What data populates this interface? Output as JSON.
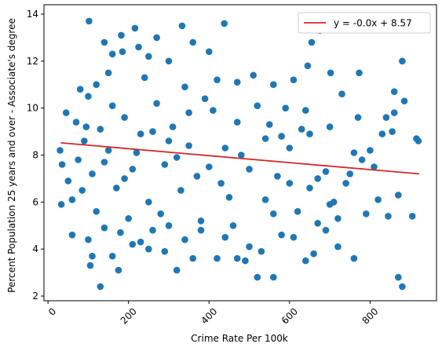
{
  "chart_data": {
    "type": "scatter",
    "title": "",
    "xlabel": "Crime Rate Per 100k",
    "ylabel": "Percent Population 25 years and over - Associate's degree",
    "xlim": [
      -10,
      965
    ],
    "ylim": [
      1.8,
      14.4
    ],
    "xticks": [
      0,
      200,
      400,
      600,
      800
    ],
    "yticks": [
      2,
      4,
      6,
      8,
      10,
      12,
      14
    ],
    "xtick_rotation": 45,
    "grid": false,
    "legend": {
      "placement": "top-right",
      "entries": [
        "y = -0.0x + 8.57"
      ]
    },
    "series": [
      {
        "kind": "points",
        "color": "#1f77b4",
        "points_sample": [
          [
            102,
            13.7
          ],
          [
            182,
            13.1
          ],
          [
            216,
            13.4
          ],
          [
            333,
            13.5
          ],
          [
            438,
            13.6
          ],
          [
            675,
            13.3
          ],
          [
            655,
            12.8
          ],
          [
            880,
            12.0
          ],
          [
            773,
            11.5
          ],
          [
            645,
            11.8
          ],
          [
            702,
            11.5
          ],
          [
            610,
            11.2
          ],
          [
            560,
            11.0
          ],
          [
            470,
            11.1
          ],
          [
            300,
            12.0
          ],
          [
            250,
            12.2
          ],
          [
            150,
            11.5
          ],
          [
            120,
            11.0
          ],
          [
            80,
            10.8
          ],
          [
            45,
            9.8
          ],
          [
            30,
            8.2
          ],
          [
            35,
            7.6
          ],
          [
            50,
            6.9
          ],
          [
            60,
            6.1
          ],
          [
            33,
            5.9
          ],
          [
            60,
            4.6
          ],
          [
            100,
            4.4
          ],
          [
            110,
            3.7
          ],
          [
            105,
            3.3
          ],
          [
            130,
            2.4
          ],
          [
            160,
            3.7
          ],
          [
            175,
            3.1
          ],
          [
            230,
            4.3
          ],
          [
            250,
            4.0
          ],
          [
            290,
            3.9
          ],
          [
            320,
            3.1
          ],
          [
            360,
            3.6
          ],
          [
            420,
            3.6
          ],
          [
            490,
            3.5
          ],
          [
            530,
            3.9
          ],
          [
            560,
            2.8
          ],
          [
            520,
            2.8
          ],
          [
            610,
            4.5
          ],
          [
            640,
            3.5
          ],
          [
            660,
            3.8
          ],
          [
            720,
            5.3
          ],
          [
            760,
            3.6
          ],
          [
            790,
            5.5
          ],
          [
            820,
            6.1
          ],
          [
            845,
            5.4
          ],
          [
            870,
            6.3
          ],
          [
            880,
            2.4
          ],
          [
            870,
            2.8
          ],
          [
            905,
            5.4
          ],
          [
            915,
            8.7
          ],
          [
            920,
            8.6
          ],
          [
            855,
            9.0
          ],
          [
            840,
            9.6
          ],
          [
            860,
            9.8
          ],
          [
            885,
            10.3
          ],
          [
            860,
            10.7
          ],
          [
            800,
            8.2
          ],
          [
            780,
            7.8
          ],
          [
            760,
            8.1
          ],
          [
            740,
            6.8
          ],
          [
            700,
            9.2
          ],
          [
            690,
            7.3
          ],
          [
            650,
            8.9
          ],
          [
            630,
            9.1
          ],
          [
            600,
            8.3
          ],
          [
            580,
            8.8
          ],
          [
            550,
            9.3
          ],
          [
            520,
            10.1
          ],
          [
            500,
            7.4
          ],
          [
            480,
            8.0
          ],
          [
            450,
            6.2
          ],
          [
            430,
            6.8
          ],
          [
            410,
            9.9
          ],
          [
            390,
            10.4
          ],
          [
            370,
            7.1
          ],
          [
            350,
            8.4
          ],
          [
            330,
            6.5
          ],
          [
            310,
            9.2
          ],
          [
            290,
            7.6
          ],
          [
            270,
            10.2
          ],
          [
            250,
            6.0
          ],
          [
            230,
            8.9
          ],
          [
            210,
            7.4
          ],
          [
            190,
            9.6
          ],
          [
            170,
            6.6
          ],
          [
            150,
            8.2
          ],
          [
            130,
            9.1
          ],
          [
            110,
            7.2
          ],
          [
            90,
            8.6
          ],
          [
            70,
            9.4
          ],
          [
            200,
            5.3
          ],
          [
            240,
            11.3
          ],
          [
            280,
            5.5
          ],
          [
            340,
            10.9
          ],
          [
            380,
            5.2
          ],
          [
            420,
            11.2
          ],
          [
            460,
            5.0
          ],
          [
            510,
            11.4
          ],
          [
            540,
            6.1
          ],
          [
            590,
            10.0
          ],
          [
            620,
            5.6
          ],
          [
            670,
            7.0
          ],
          [
            710,
            6.0
          ],
          [
            730,
            10.6
          ],
          [
            750,
            7.2
          ],
          [
            770,
            9.6
          ],
          [
            810,
            7.5
          ],
          [
            830,
            8.9
          ],
          [
            600,
            6.8
          ],
          [
            400,
            12.4
          ],
          [
            360,
            12.8
          ],
          [
            270,
            13.0
          ],
          [
            225,
            12.6
          ],
          [
            185,
            12.4
          ],
          [
            160,
            12.3
          ],
          [
            140,
            12.8
          ],
          [
            640,
            9.9
          ],
          [
            120,
            5.6
          ],
          [
            140,
            4.9
          ],
          [
            180,
            4.7
          ],
          [
            210,
            4.2
          ],
          [
            260,
            4.8
          ],
          [
            300,
            5.0
          ],
          [
            340,
            4.4
          ],
          [
            380,
            4.8
          ],
          [
            440,
            4.5
          ],
          [
            470,
            3.6
          ],
          [
            500,
            4.1
          ],
          [
            560,
            5.5
          ],
          [
            580,
            4.6
          ],
          [
            670,
            5.1
          ],
          [
            690,
            4.8
          ],
          [
            720,
            4.1
          ],
          [
            700,
            5.9
          ],
          [
            650,
            6.6
          ],
          [
            570,
            7.1
          ],
          [
            540,
            8.7
          ],
          [
            470,
            9.4
          ],
          [
            440,
            8.3
          ],
          [
            400,
            7.5
          ],
          [
            350,
            9.8
          ],
          [
            320,
            7.9
          ],
          [
            300,
            8.6
          ],
          [
            260,
            9.0
          ],
          [
            220,
            8.1
          ],
          [
            190,
            7.0
          ],
          [
            160,
            10.1
          ],
          [
            140,
            7.7
          ],
          [
            100,
            10.5
          ],
          [
            85,
            6.5
          ],
          [
            75,
            7.8
          ],
          [
            95,
            9.2
          ]
        ]
      },
      {
        "kind": "fit-line",
        "name": "y = -0.0x + 8.57",
        "color": "#d62728",
        "x": [
          32,
          922
        ],
        "y": [
          8.52,
          7.2
        ]
      }
    ]
  }
}
